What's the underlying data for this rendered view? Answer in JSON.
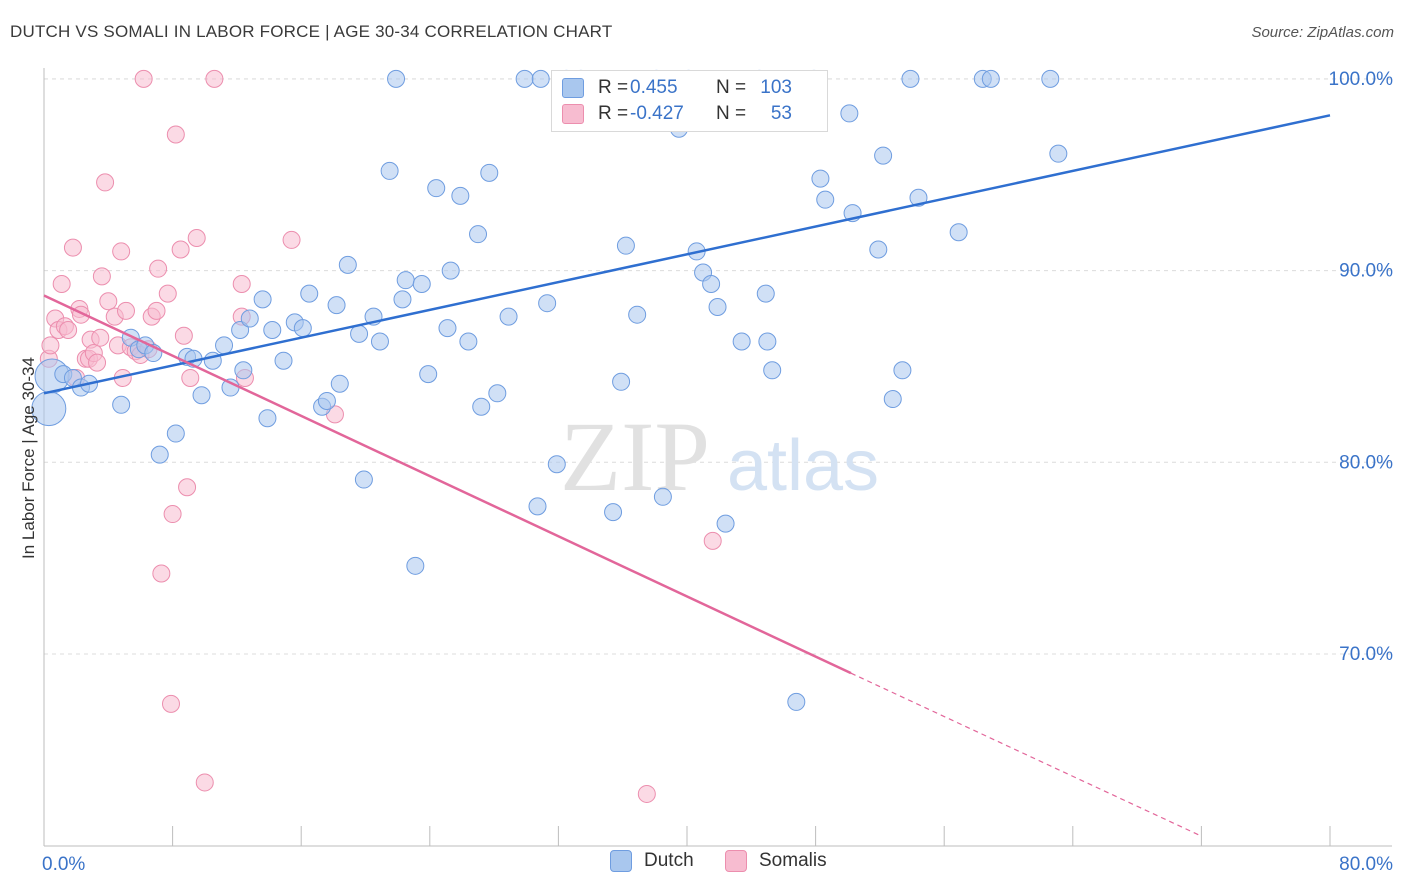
{
  "header": {
    "title": "DUTCH VS SOMALI IN LABOR FORCE | AGE 30-34 CORRELATION CHART",
    "source": "Source: ZipAtlas.com"
  },
  "watermark": {
    "zip": "ZIP",
    "atlas": "atlas"
  },
  "legend": {
    "rows": [
      {
        "r_label": "R =",
        "r_value": "0.455",
        "n_label": "N =",
        "n_value": "103"
      },
      {
        "r_label": "R =",
        "r_value": "-0.427",
        "n_label": "N =",
        "n_value": "53"
      }
    ]
  },
  "bottom_legend": {
    "dutch": "Dutch",
    "somalis": "Somalis"
  },
  "colors": {
    "dutch_fill": "#a9c7ee",
    "dutch_stroke": "#6f9de0",
    "dutch_line": "#2f6fd0",
    "somali_fill": "#f7bcd0",
    "somali_stroke": "#ec8eae",
    "somali_line": "#e2669a",
    "tick_label": "#3a73c8",
    "grid": "#dcdcdc"
  },
  "chart_data": {
    "type": "scatter",
    "title": "DUTCH VS SOMALI IN LABOR FORCE | AGE 30-34 CORRELATION CHART",
    "xlabel": "",
    "ylabel": "In Labor Force | Age 30-34",
    "xlim": [
      0,
      80
    ],
    "ylim": [
      60,
      104
    ],
    "x_tick_labels": [
      {
        "value": 0,
        "label": "0.0%"
      },
      {
        "value": 80,
        "label": "80.0%"
      }
    ],
    "y_tick_labels": [
      {
        "value": 70,
        "label": "70.0%"
      },
      {
        "value": 80,
        "label": "80.0%"
      },
      {
        "value": 90,
        "label": "90.0%"
      },
      {
        "value": 100,
        "label": "100.0%"
      }
    ],
    "grid": true,
    "legend_position": "top-center",
    "series": [
      {
        "name": "Dutch",
        "r": 0.455,
        "n": 103,
        "trend": {
          "x": [
            0,
            80
          ],
          "y": [
            83.6,
            98.1
          ]
        },
        "points": [
          [
            0.5,
            84.5,
            2
          ],
          [
            0.3,
            82.8,
            2
          ],
          [
            1.2,
            84.6,
            1
          ],
          [
            1.8,
            84.4,
            1
          ],
          [
            2.3,
            83.9,
            1
          ],
          [
            2.8,
            84.1,
            1
          ],
          [
            4.8,
            83.0,
            1
          ],
          [
            5.4,
            86.5,
            1
          ],
          [
            5.9,
            85.9,
            1
          ],
          [
            6.3,
            86.1,
            1
          ],
          [
            6.8,
            85.7,
            1
          ],
          [
            7.2,
            80.4,
            1
          ],
          [
            8.2,
            81.5,
            1
          ],
          [
            8.9,
            85.5,
            1
          ],
          [
            9.3,
            85.4,
            1
          ],
          [
            9.8,
            83.5,
            1
          ],
          [
            10.5,
            85.3,
            1
          ],
          [
            11.2,
            86.1,
            1
          ],
          [
            11.6,
            83.9,
            1
          ],
          [
            12.2,
            86.9,
            1
          ],
          [
            12.4,
            84.8,
            1
          ],
          [
            12.8,
            87.5,
            1
          ],
          [
            13.6,
            88.5,
            1
          ],
          [
            13.9,
            82.3,
            1
          ],
          [
            14.2,
            86.9,
            1
          ],
          [
            14.9,
            85.3,
            1
          ],
          [
            15.6,
            87.3,
            1
          ],
          [
            16.1,
            87.0,
            1
          ],
          [
            16.5,
            88.8,
            1
          ],
          [
            17.3,
            82.9,
            1
          ],
          [
            17.6,
            83.2,
            1
          ],
          [
            18.2,
            88.2,
            1
          ],
          [
            18.4,
            84.1,
            1
          ],
          [
            18.9,
            90.3,
            1
          ],
          [
            19.6,
            86.7,
            1
          ],
          [
            19.9,
            79.1,
            1
          ],
          [
            20.5,
            87.6,
            1
          ],
          [
            20.9,
            86.3,
            1
          ],
          [
            21.5,
            95.2,
            1
          ],
          [
            21.9,
            100.0,
            1
          ],
          [
            22.3,
            88.5,
            1
          ],
          [
            22.5,
            89.5,
            1
          ],
          [
            23.1,
            74.6,
            1
          ],
          [
            23.5,
            89.3,
            1
          ],
          [
            23.9,
            84.6,
            1
          ],
          [
            24.4,
            94.3,
            1
          ],
          [
            25.1,
            87.0,
            1
          ],
          [
            25.3,
            90.0,
            1
          ],
          [
            25.9,
            93.9,
            1
          ],
          [
            26.4,
            86.3,
            1
          ],
          [
            27.0,
            91.9,
            1
          ],
          [
            27.2,
            82.9,
            1
          ],
          [
            27.7,
            95.1,
            1
          ],
          [
            28.2,
            83.6,
            1
          ],
          [
            28.9,
            87.6,
            1
          ],
          [
            29.9,
            100.0,
            1
          ],
          [
            30.7,
            77.7,
            1
          ],
          [
            30.9,
            100.0,
            1
          ],
          [
            31.3,
            88.3,
            1
          ],
          [
            31.9,
            79.9,
            1
          ],
          [
            32.5,
            100.0,
            1
          ],
          [
            33.4,
            100.0,
            1
          ],
          [
            35.4,
            77.4,
            1
          ],
          [
            35.9,
            84.2,
            1
          ],
          [
            36.2,
            91.3,
            1
          ],
          [
            36.9,
            87.7,
            1
          ],
          [
            38.1,
            100.0,
            1
          ],
          [
            38.5,
            78.2,
            1
          ],
          [
            39.5,
            97.4,
            1
          ],
          [
            40.1,
            100.0,
            1
          ],
          [
            40.6,
            91.0,
            1
          ],
          [
            41.0,
            89.9,
            1
          ],
          [
            41.5,
            89.3,
            1
          ],
          [
            41.9,
            88.1,
            1
          ],
          [
            42.4,
            76.8,
            1
          ],
          [
            43.4,
            86.3,
            1
          ],
          [
            44.5,
            100.0,
            1
          ],
          [
            44.9,
            88.8,
            1
          ],
          [
            45.0,
            86.3,
            1
          ],
          [
            45.3,
            84.8,
            1
          ],
          [
            46.8,
            67.5,
            1
          ],
          [
            47.9,
            100.0,
            1
          ],
          [
            48.3,
            94.8,
            1
          ],
          [
            48.6,
            93.7,
            1
          ],
          [
            50.1,
            98.2,
            1
          ],
          [
            50.3,
            93.0,
            1
          ],
          [
            51.9,
            91.1,
            1
          ],
          [
            52.2,
            96.0,
            1
          ],
          [
            52.8,
            83.3,
            1
          ],
          [
            53.4,
            84.8,
            1
          ],
          [
            53.9,
            100.0,
            1
          ],
          [
            54.4,
            93.8,
            1
          ],
          [
            56.9,
            92.0,
            1
          ],
          [
            58.4,
            100.0,
            1
          ],
          [
            58.9,
            100.0,
            1
          ],
          [
            62.6,
            100.0,
            1
          ],
          [
            63.1,
            96.1,
            1
          ]
        ]
      },
      {
        "name": "Somalis",
        "r": -0.427,
        "n": 53,
        "trend": {
          "x": [
            0,
            50.2
          ],
          "y": [
            88.7,
            69.0
          ]
        },
        "trend_dashed": {
          "x": [
            50.2,
            72.0
          ],
          "y": [
            69.0,
            60.5
          ]
        },
        "points": [
          [
            0.3,
            85.4,
            1
          ],
          [
            0.4,
            86.1,
            1
          ],
          [
            0.7,
            87.5,
            1
          ],
          [
            0.9,
            86.9,
            1
          ],
          [
            1.1,
            89.3,
            1
          ],
          [
            1.3,
            87.1,
            1
          ],
          [
            1.5,
            86.9,
            1
          ],
          [
            1.8,
            91.2,
            1
          ],
          [
            2.0,
            84.4,
            1
          ],
          [
            2.2,
            88.0,
            1
          ],
          [
            2.3,
            87.7,
            1
          ],
          [
            2.6,
            85.4,
            1
          ],
          [
            2.8,
            85.4,
            1
          ],
          [
            2.9,
            86.4,
            1
          ],
          [
            3.1,
            85.7,
            1
          ],
          [
            3.3,
            85.2,
            1
          ],
          [
            3.5,
            86.5,
            1
          ],
          [
            3.6,
            89.7,
            1
          ],
          [
            3.8,
            94.6,
            1
          ],
          [
            4.0,
            88.4,
            1
          ],
          [
            4.4,
            87.6,
            1
          ],
          [
            4.6,
            86.1,
            1
          ],
          [
            4.8,
            91.0,
            1
          ],
          [
            4.9,
            84.4,
            1
          ],
          [
            5.1,
            87.9,
            1
          ],
          [
            5.4,
            86.0,
            1
          ],
          [
            5.7,
            85.8,
            1
          ],
          [
            6.0,
            85.6,
            1
          ],
          [
            6.2,
            100.0,
            1
          ],
          [
            6.5,
            85.9,
            1
          ],
          [
            6.7,
            87.6,
            1
          ],
          [
            7.0,
            87.9,
            1
          ],
          [
            7.1,
            90.1,
            1
          ],
          [
            7.3,
            74.2,
            1
          ],
          [
            7.7,
            88.8,
            1
          ],
          [
            7.9,
            67.4,
            1
          ],
          [
            8.0,
            77.3,
            1
          ],
          [
            8.2,
            97.1,
            1
          ],
          [
            8.5,
            91.1,
            1
          ],
          [
            8.7,
            86.6,
            1
          ],
          [
            8.9,
            78.7,
            1
          ],
          [
            9.1,
            84.4,
            1
          ],
          [
            9.5,
            91.7,
            1
          ],
          [
            10.0,
            63.3,
            1
          ],
          [
            10.6,
            100.0,
            1
          ],
          [
            12.3,
            87.6,
            1
          ],
          [
            12.3,
            89.3,
            1
          ],
          [
            12.5,
            84.4,
            1
          ],
          [
            15.4,
            91.6,
            1
          ],
          [
            18.1,
            82.5,
            1
          ],
          [
            37.5,
            62.7,
            1
          ],
          [
            41.6,
            75.9,
            1
          ]
        ]
      }
    ]
  }
}
